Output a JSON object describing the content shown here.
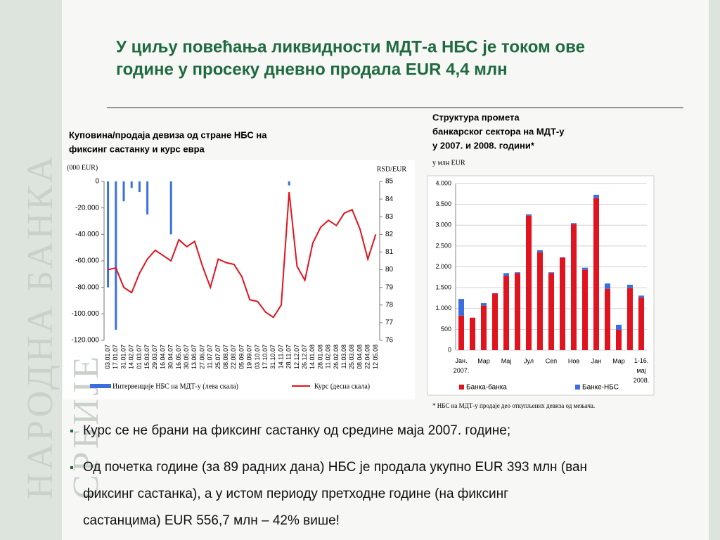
{
  "slide": {
    "watermark": [
      "НАРОДНА БАНКА",
      "СРБИЈЕ"
    ],
    "title": [
      "У циљу повећања ликвидности МДТ-а НБС је током ове",
      "године у просеку дневно продала EUR 4,4 млн"
    ],
    "bullets": [
      [
        "Курс се не брани  на фиксинг састанку од средине маја 2007. године;"
      ],
      [
        "Од почетка године (за 89 радних дана) НБС је продала укупно EUR 393 млн (ван",
        "фиксинг састанка), а у истом периоду претходне године (на фиксинг",
        "састанцима) EUR 556,7 млн – 42% више!"
      ]
    ]
  },
  "chart_data": [
    {
      "type": "combo",
      "title": [
        "Куповина/продаја девиза од стране НБС на",
        "фиксинг састанку и курс евра"
      ],
      "y_label": "(000 EUR)",
      "y2_label": "RSD/EUR",
      "categories": [
        "03.01.07",
        "17.01.07",
        "31.01.07",
        "14.02.07",
        "01.03.07",
        "15.03.07",
        "29.03.07",
        "16.04.07",
        "30.04.07",
        "16.05.07",
        "30.05.07",
        "13.06.07",
        "27.06.07",
        "11.07.07",
        "25.07.07",
        "08.08.07",
        "22.08.07",
        "05.09.07",
        "19.09.07",
        "03.10.07",
        "17.10.07",
        "31.10.07",
        "14.11.07",
        "28.11.07",
        "12.12.07",
        "26.12.07",
        "14.01.08",
        "28.01.08",
        "11.02.08",
        "26.02.08",
        "11.03.08",
        "25.03.08",
        "08.04.08",
        "22.04.08",
        "12.05.08"
      ],
      "series": [
        {
          "name": "Интервенције НБС на МДТ-у (лева скала)",
          "color": "#3b6fe0",
          "kind": "bar",
          "values": [
            -80000,
            -112000,
            -15000,
            -5000,
            -8000,
            -25000,
            0,
            0,
            -40000,
            0,
            0,
            0,
            0,
            0,
            0,
            0,
            0,
            0,
            0,
            0,
            0,
            0,
            0,
            -3000,
            0,
            0,
            0,
            0,
            0,
            0,
            0,
            0,
            0,
            0,
            0
          ]
        },
        {
          "name": "Курс (десна скала)",
          "color": "#e0141e",
          "kind": "line",
          "axis": "y2",
          "values": [
            80.0,
            80.1,
            79.0,
            78.7,
            79.8,
            80.6,
            81.1,
            80.8,
            80.5,
            81.7,
            81.3,
            81.6,
            80.2,
            79.0,
            80.6,
            80.4,
            80.3,
            79.6,
            78.3,
            78.2,
            77.6,
            77.3,
            78.0,
            84.4,
            80.2,
            79.4,
            81.5,
            82.4,
            82.8,
            82.5,
            83.2,
            83.4,
            82.3,
            80.6,
            82.0
          ]
        }
      ],
      "ylim": [
        -120000,
        0
      ],
      "yticks": [
        0,
        {
          "value": -20000,
          "label": "-20.000"
        },
        {
          "value": -40000,
          "label": "-40.000"
        },
        {
          "value": -60000,
          "label": "-60.000"
        },
        {
          "value": -80000,
          "label": "-80.000"
        },
        {
          "value": -100000,
          "label": "-100.000"
        },
        {
          "value": -120000,
          "label": "-120.000"
        }
      ],
      "y2lim": [
        76,
        85
      ],
      "y2ticks": [
        76,
        77,
        78,
        79,
        80,
        81,
        82,
        83,
        84,
        85
      ]
    },
    {
      "type": "stacked-bar",
      "title": [
        "Структура промета",
        "банкарског сектора на МДТ-у",
        "у 2007. и 2008. години*"
      ],
      "y_label": "у млн EUR",
      "footnote": "* НБС на МДТ-у продаје део откупљених девиза од мењача.",
      "categories": [
        "Јан. 2007.",
        null,
        "Мар",
        null,
        "Мај",
        null,
        "Јул",
        null,
        "Сеп",
        null,
        "Нов",
        null,
        "Јан",
        null,
        "Мар",
        null,
        "1-16. мај 2008."
      ],
      "series": [
        {
          "name": "Банка-банка",
          "color": "#e0141e",
          "values": [
            830,
            780,
            1070,
            1360,
            1780,
            1850,
            3230,
            2350,
            1850,
            2220,
            3020,
            1930,
            3650,
            1470,
            490,
            1490,
            1260
          ]
        },
        {
          "name": "Банке-НБС",
          "color": "#3b6fe0",
          "values": [
            400,
            0,
            60,
            10,
            70,
            20,
            30,
            50,
            20,
            10,
            30,
            50,
            80,
            130,
            120,
            80,
            50
          ]
        }
      ],
      "ylim": [
        0,
        4000
      ],
      "yticks": [
        0,
        500,
        {
          "value": 1000,
          "label": "1.000"
        },
        {
          "value": 1500,
          "label": "1.500"
        },
        {
          "value": 2000,
          "label": "2.000"
        },
        {
          "value": 2500,
          "label": "2.500"
        },
        {
          "value": 3000,
          "label": "3.000"
        },
        {
          "value": 3500,
          "label": "3.500"
        },
        {
          "value": 4000,
          "label": "4.000"
        }
      ],
      "grid": true
    }
  ]
}
